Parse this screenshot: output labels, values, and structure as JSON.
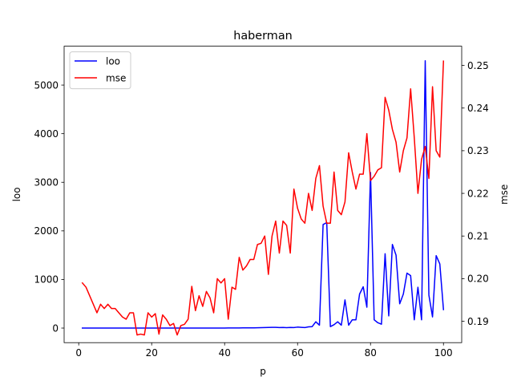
{
  "chart_data": {
    "type": "line",
    "title": "haberman",
    "xlabel": "p",
    "ylabel_left": "loo",
    "ylabel_right": "mse",
    "xlim": [
      -4,
      105
    ],
    "ylim_left": [
      -300,
      5800
    ],
    "ylim_right": [
      0.185,
      0.2545
    ],
    "x_ticks": [
      0,
      20,
      40,
      60,
      80,
      100
    ],
    "y_left_ticks": [
      0,
      1000,
      2000,
      3000,
      4000,
      5000
    ],
    "y_right_ticks": [
      0.19,
      0.2,
      0.21,
      0.22,
      0.23,
      0.24,
      0.25
    ],
    "y_right_tick_labels": [
      "0.19",
      "0.20",
      "0.21",
      "0.22",
      "0.23",
      "0.24",
      "0.25"
    ],
    "legend_position": "top-left",
    "series": [
      {
        "name": "loo",
        "axis": "left",
        "color": "#0000ff",
        "x": [
          1,
          2,
          3,
          4,
          5,
          6,
          7,
          8,
          9,
          10,
          11,
          12,
          13,
          14,
          15,
          16,
          17,
          18,
          19,
          20,
          21,
          22,
          23,
          24,
          25,
          26,
          27,
          28,
          29,
          30,
          31,
          32,
          33,
          34,
          35,
          36,
          37,
          38,
          39,
          40,
          41,
          42,
          43,
          44,
          45,
          46,
          47,
          48,
          49,
          50,
          51,
          52,
          53,
          54,
          55,
          56,
          57,
          58,
          59,
          60,
          61,
          62,
          63,
          64,
          65,
          66,
          67,
          68,
          69,
          70,
          71,
          72,
          73,
          74,
          75,
          76,
          77,
          78,
          79,
          80,
          81,
          82,
          83,
          84,
          85,
          86,
          87,
          88,
          89,
          90,
          91,
          92,
          93,
          94,
          95,
          96,
          97,
          98,
          99,
          100
        ],
        "values": [
          0,
          0,
          0,
          0,
          0,
          0,
          0,
          0,
          0,
          0,
          0,
          0,
          0,
          0,
          0,
          0,
          0,
          0,
          0,
          0,
          0,
          0,
          0,
          0,
          0,
          0,
          0,
          0,
          0,
          0,
          0,
          0,
          0,
          0,
          0,
          0,
          0,
          0,
          0,
          0,
          2,
          2,
          3,
          3,
          4,
          5,
          4,
          5,
          6,
          8,
          10,
          12,
          15,
          14,
          10,
          12,
          8,
          12,
          10,
          20,
          15,
          10,
          25,
          30,
          130,
          60,
          2130,
          2170,
          30,
          70,
          130,
          60,
          580,
          60,
          170,
          170,
          700,
          850,
          430,
          3200,
          170,
          110,
          80,
          1530,
          250,
          1720,
          1500,
          500,
          700,
          1130,
          1080,
          170,
          840,
          170,
          5500,
          680,
          230,
          1490,
          1320,
          380
        ]
      },
      {
        "name": "mse",
        "axis": "right",
        "color": "#ff0000",
        "x": [
          1,
          2,
          3,
          4,
          5,
          6,
          7,
          8,
          9,
          10,
          11,
          12,
          13,
          14,
          15,
          16,
          17,
          18,
          19,
          20,
          21,
          22,
          23,
          24,
          25,
          26,
          27,
          28,
          29,
          30,
          31,
          32,
          33,
          34,
          35,
          36,
          37,
          38,
          39,
          40,
          41,
          42,
          43,
          44,
          45,
          46,
          47,
          48,
          49,
          50,
          51,
          52,
          53,
          54,
          55,
          56,
          57,
          58,
          59,
          60,
          61,
          62,
          63,
          64,
          65,
          66,
          67,
          68,
          69,
          70,
          71,
          72,
          73,
          74,
          75,
          76,
          77,
          78,
          79,
          80,
          81,
          82,
          83,
          84,
          85,
          86,
          87,
          88,
          89,
          90,
          91,
          92,
          93,
          94,
          95,
          96,
          97,
          98,
          99,
          100
        ],
        "values": [
          0.199,
          0.198,
          0.196,
          0.194,
          0.192,
          0.194,
          0.193,
          0.194,
          0.193,
          0.193,
          0.192,
          0.191,
          0.1905,
          0.192,
          0.192,
          0.1868,
          0.187,
          0.1868,
          0.192,
          0.191,
          0.1918,
          0.187,
          0.1915,
          0.1905,
          0.189,
          0.1895,
          0.1868,
          0.189,
          0.1893,
          0.1905,
          0.1982,
          0.1925,
          0.196,
          0.1935,
          0.197,
          0.1955,
          0.192,
          0.2,
          0.199,
          0.2,
          0.1905,
          0.198,
          0.1975,
          0.205,
          0.202,
          0.203,
          0.2045,
          0.2045,
          0.208,
          0.2083,
          0.21,
          0.201,
          0.21,
          0.2135,
          0.206,
          0.2135,
          0.2125,
          0.206,
          0.221,
          0.2165,
          0.214,
          0.213,
          0.22,
          0.216,
          0.2235,
          0.2265,
          0.217,
          0.213,
          0.213,
          0.225,
          0.216,
          0.215,
          0.218,
          0.2295,
          0.225,
          0.221,
          0.2245,
          0.2245,
          0.234,
          0.223,
          0.224,
          0.2255,
          0.226,
          0.2425,
          0.2395,
          0.235,
          0.232,
          0.225,
          0.23,
          0.233,
          0.2445,
          0.233,
          0.22,
          0.228,
          0.231,
          0.2235,
          0.245,
          0.23,
          0.2285,
          0.251
        ]
      }
    ]
  }
}
